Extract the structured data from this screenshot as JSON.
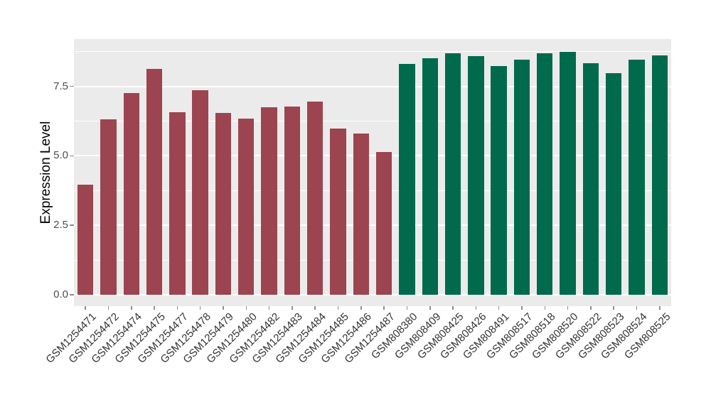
{
  "chart_data": {
    "type": "bar",
    "title": "",
    "xlabel": "",
    "ylabel": "Expression Level",
    "categories": [
      "GSM1254471",
      "GSM1254472",
      "GSM1254474",
      "GSM1254475",
      "GSM1254477",
      "GSM1254478",
      "GSM1254479",
      "GSM1254480",
      "GSM1254482",
      "GSM1254483",
      "GSM1254484",
      "GSM1254485",
      "GSM1254486",
      "GSM1254487",
      "GSM808380",
      "GSM808409",
      "GSM808425",
      "GSM808426",
      "GSM808491",
      "GSM808517",
      "GSM808518",
      "GSM808520",
      "GSM808522",
      "GSM808523",
      "GSM808524",
      "GSM808525"
    ],
    "values": [
      3.95,
      6.32,
      7.25,
      8.12,
      6.57,
      7.37,
      6.55,
      6.33,
      6.75,
      6.78,
      6.95,
      5.98,
      5.79,
      5.13,
      8.3,
      8.5,
      8.7,
      8.58,
      8.24,
      8.47,
      8.7,
      8.73,
      8.32,
      7.98,
      8.45,
      8.62
    ],
    "bar_groups": [
      0,
      0,
      0,
      0,
      0,
      0,
      0,
      0,
      0,
      0,
      0,
      0,
      0,
      0,
      1,
      1,
      1,
      1,
      1,
      1,
      1,
      1,
      1,
      1,
      1,
      1
    ],
    "group_colors": [
      "#9C4450",
      "#006A4D"
    ],
    "ylim": [
      -0.41,
      9.2
    ],
    "y_ticks": [
      {
        "label": "0.0",
        "value": 0
      },
      {
        "label": "2.5",
        "value": 2.5
      },
      {
        "label": "5.0",
        "value": 5
      },
      {
        "label": "7.5",
        "value": 7.5
      }
    ],
    "y_minor_ticks": [
      1.25,
      3.75,
      6.25,
      8.75
    ],
    "legend": "none",
    "grid": "on",
    "plot_background": "#EBEBEB",
    "gridline_color": "#FFFFFF"
  }
}
